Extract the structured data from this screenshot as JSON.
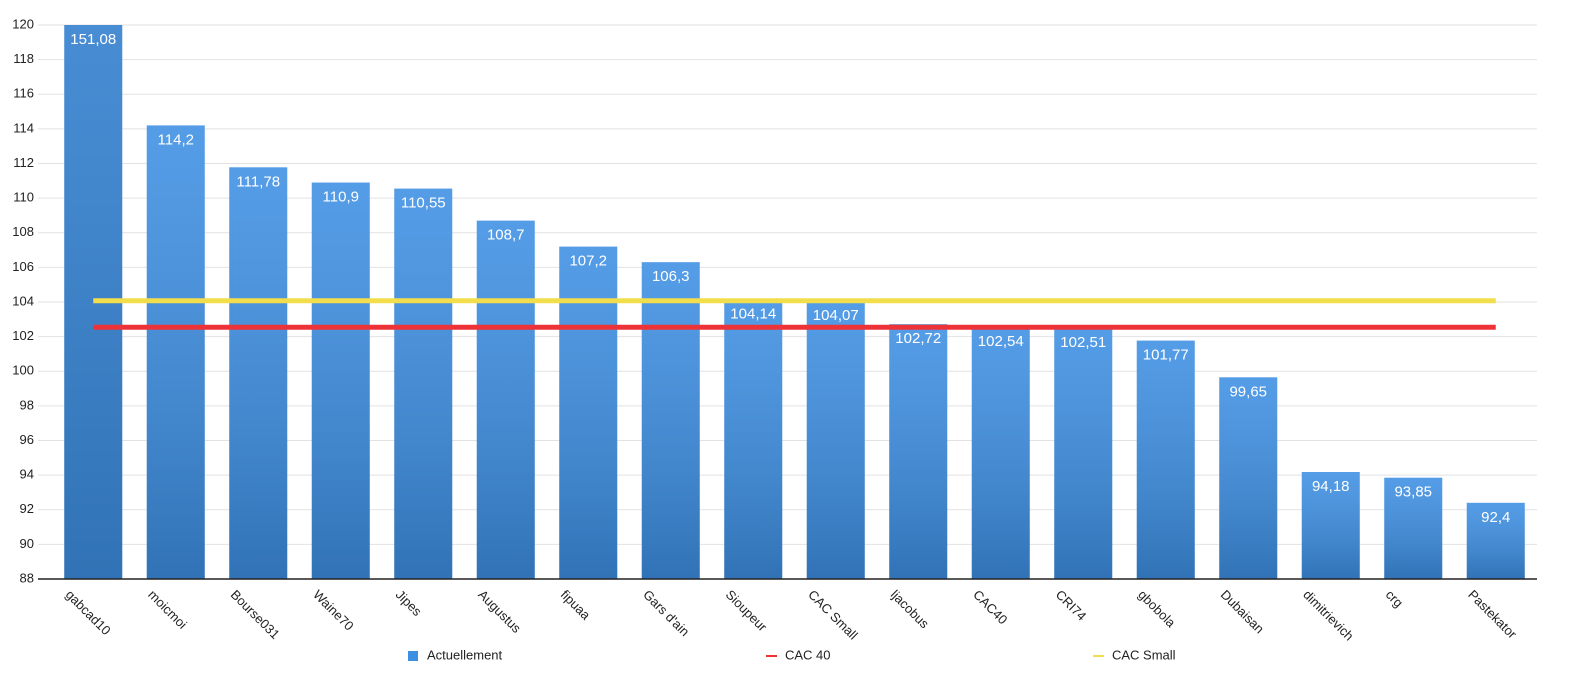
{
  "chart_data": {
    "type": "bar",
    "categories": [
      "gabcad10",
      "moicmoi",
      "Bourse031",
      "Waine70",
      "Jipes",
      "Augustus",
      "fipuaa",
      "Gars d'ain",
      "Sioupeur",
      "CAC Small",
      "ljacobus",
      "CAC40",
      "CRI74",
      "gbobola",
      "Dubaisan",
      "dimitrievich",
      "crg",
      "Pastekator"
    ],
    "series": [
      {
        "name": "Actuellement",
        "type": "bar",
        "color": "#3d8fe3",
        "values": [
          151.08,
          114.2,
          111.78,
          110.9,
          110.55,
          108.7,
          107.2,
          106.3,
          104.14,
          104.07,
          102.72,
          102.54,
          102.51,
          101.77,
          99.65,
          94.18,
          93.85,
          92.4
        ],
        "value_labels": [
          "151,08",
          "114,2",
          "111,78",
          "110,9",
          "110,55",
          "108,7",
          "107,2",
          "106,3",
          "104,14",
          "104,07",
          "102,72",
          "102,54",
          "102,51",
          "101,77",
          "99,65",
          "94,18",
          "93,85",
          "92,4"
        ]
      },
      {
        "name": "CAC 40",
        "type": "line",
        "color": "#ee3338",
        "values": [
          102.54,
          102.54,
          102.54,
          102.54,
          102.54,
          102.54,
          102.54,
          102.54,
          102.54,
          102.54,
          102.54,
          102.54,
          102.54,
          102.54,
          102.54,
          102.54,
          102.54,
          102.54
        ]
      },
      {
        "name": "CAC Small",
        "type": "line",
        "color": "#f2de4c",
        "values": [
          104.07,
          104.07,
          104.07,
          104.07,
          104.07,
          104.07,
          104.07,
          104.07,
          104.07,
          104.07,
          104.07,
          104.07,
          104.07,
          104.07,
          104.07,
          104.07,
          104.07,
          104.07
        ]
      }
    ],
    "ylim": [
      88,
      120
    ],
    "yticks": [
      88,
      90,
      92,
      94,
      96,
      98,
      100,
      102,
      104,
      106,
      108,
      110,
      112,
      114,
      116,
      118,
      120
    ],
    "grid": true,
    "legend": "bottom"
  }
}
